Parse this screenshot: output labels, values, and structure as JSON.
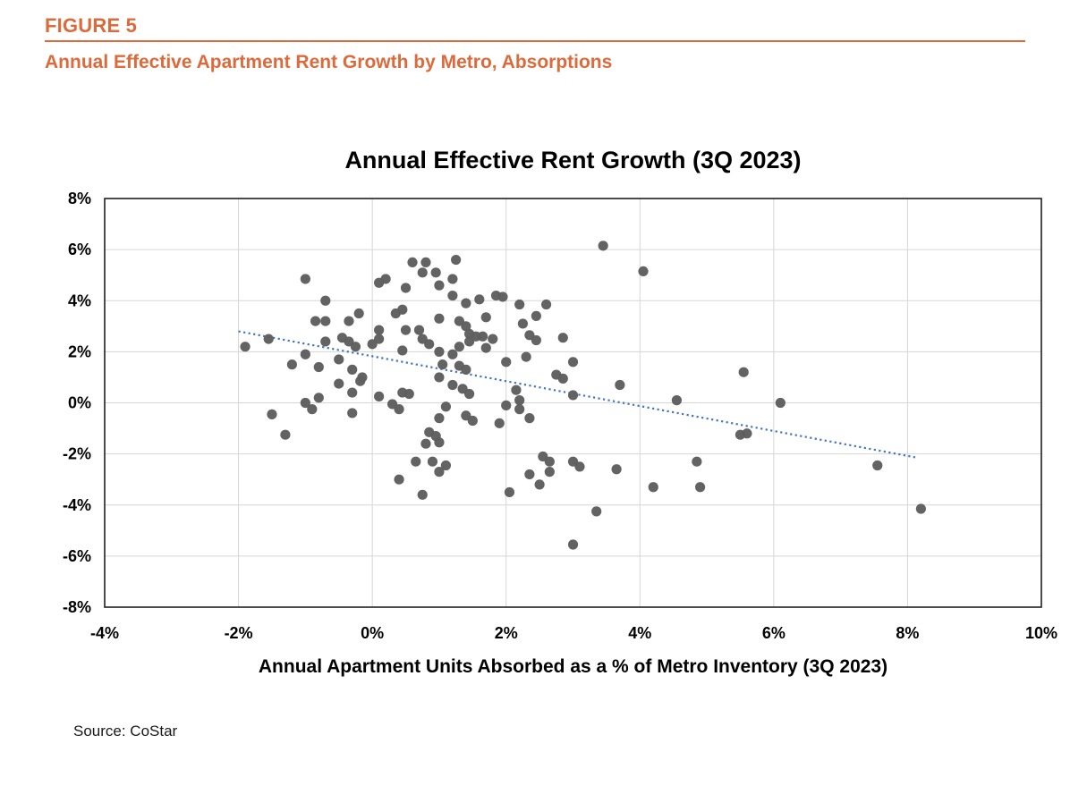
{
  "page": {
    "background": "#ffffff",
    "accent_color": "#DD6A3B"
  },
  "header": {
    "figure_label": "FIGURE 5",
    "title": "Annual Effective Apartment Rent Growth by Metro, Absorptions"
  },
  "footer": {
    "source": "Source: CoStar"
  },
  "chart_data": {
    "type": "scatter",
    "title": "Annual Effective Rent Growth (3Q 2023)",
    "xlabel": "Annual Apartment Units Absorbed as a % of Metro Inventory (3Q 2023)",
    "ylabel": "",
    "xlim": [
      -4,
      10
    ],
    "ylim": [
      -8,
      8
    ],
    "grid": true,
    "legend": "none",
    "point_color": "#5E5E5E",
    "trend_color": "#4472C4",
    "axis_color": "#1f1f1f",
    "grid_color": "#D6D6D6",
    "text_color": "#000000",
    "x_ticks": [
      {
        "value": -4,
        "label": "-4%"
      },
      {
        "value": -2,
        "label": "-2%"
      },
      {
        "value": 0,
        "label": "0%"
      },
      {
        "value": 2,
        "label": "2%"
      },
      {
        "value": 4,
        "label": "4%"
      },
      {
        "value": 6,
        "label": "6%"
      },
      {
        "value": 8,
        "label": "8%"
      },
      {
        "value": 10,
        "label": "10%"
      }
    ],
    "y_ticks": [
      {
        "value": 8,
        "label": "8%"
      },
      {
        "value": 6,
        "label": "6%"
      },
      {
        "value": 4,
        "label": "4%"
      },
      {
        "value": 2,
        "label": "2%"
      },
      {
        "value": 0,
        "label": "0%"
      },
      {
        "value": -2,
        "label": "-2%"
      },
      {
        "value": -4,
        "label": "-4%"
      },
      {
        "value": -6,
        "label": "-6%"
      },
      {
        "value": -8,
        "label": "-8%"
      }
    ],
    "trendline": {
      "style": "dotted",
      "x1": -2.0,
      "y1": 2.8,
      "x2": 8.15,
      "y2": -2.15
    },
    "points": [
      [
        -1.0,
        4.85
      ],
      [
        -0.7,
        4.0
      ],
      [
        -0.85,
        3.2
      ],
      [
        -0.7,
        3.2
      ],
      [
        -0.35,
        3.2
      ],
      [
        -0.2,
        3.5
      ],
      [
        0.6,
        5.5
      ],
      [
        0.8,
        5.5
      ],
      [
        1.25,
        5.6
      ],
      [
        0.75,
        5.1
      ],
      [
        0.95,
        5.1
      ],
      [
        0.1,
        4.7
      ],
      [
        0.2,
        4.85
      ],
      [
        0.5,
        4.5
      ],
      [
        1.0,
        4.6
      ],
      [
        1.2,
        4.85
      ],
      [
        1.2,
        4.2
      ],
      [
        1.4,
        3.9
      ],
      [
        1.6,
        4.05
      ],
      [
        1.85,
        4.2
      ],
      [
        1.95,
        4.15
      ],
      [
        2.2,
        3.85
      ],
      [
        2.6,
        3.85
      ],
      [
        3.45,
        6.15
      ],
      [
        4.05,
        5.15
      ],
      [
        0.35,
        3.5
      ],
      [
        0.45,
        3.65
      ],
      [
        1.0,
        3.3
      ],
      [
        1.3,
        3.2
      ],
      [
        1.4,
        3.0
      ],
      [
        1.7,
        3.35
      ],
      [
        2.25,
        3.1
      ],
      [
        2.45,
        3.4
      ],
      [
        0.1,
        2.85
      ],
      [
        0.1,
        2.5
      ],
      [
        0.5,
        2.85
      ],
      [
        0.7,
        2.85
      ],
      [
        0.75,
        2.5
      ],
      [
        0.85,
        2.3
      ],
      [
        1.45,
        2.7
      ],
      [
        1.55,
        2.6
      ],
      [
        1.65,
        2.6
      ],
      [
        1.8,
        2.5
      ],
      [
        1.7,
        2.15
      ],
      [
        2.35,
        2.65
      ],
      [
        2.45,
        2.45
      ],
      [
        2.85,
        2.55
      ],
      [
        -1.9,
        2.2
      ],
      [
        -1.55,
        2.5
      ],
      [
        -0.7,
        2.4
      ],
      [
        -0.45,
        2.55
      ],
      [
        -0.35,
        2.4
      ],
      [
        -0.25,
        2.2
      ],
      [
        0.0,
        2.3
      ],
      [
        -1.0,
        1.9
      ],
      [
        -1.2,
        1.5
      ],
      [
        -0.8,
        1.4
      ],
      [
        -0.5,
        1.7
      ],
      [
        0.45,
        2.05
      ],
      [
        1.0,
        2.0
      ],
      [
        1.2,
        1.9
      ],
      [
        1.3,
        2.2
      ],
      [
        1.45,
        2.4
      ],
      [
        2.0,
        1.6
      ],
      [
        2.3,
        1.8
      ],
      [
        -0.3,
        1.3
      ],
      [
        -0.15,
        1.0
      ],
      [
        -0.5,
        0.75
      ],
      [
        -0.3,
        0.4
      ],
      [
        -0.18,
        0.85
      ],
      [
        0.1,
        0.25
      ],
      [
        -0.8,
        0.2
      ],
      [
        -1.0,
        0.0
      ],
      [
        -0.9,
        -0.25
      ],
      [
        -1.5,
        -0.45
      ],
      [
        -1.3,
        -1.25
      ],
      [
        -0.3,
        -0.4
      ],
      [
        0.3,
        -0.05
      ],
      [
        0.4,
        -0.25
      ],
      [
        0.45,
        0.4
      ],
      [
        0.55,
        0.35
      ],
      [
        1.05,
        1.5
      ],
      [
        1.3,
        1.45
      ],
      [
        1.4,
        1.3
      ],
      [
        1.0,
        1.0
      ],
      [
        1.2,
        0.7
      ],
      [
        1.35,
        0.55
      ],
      [
        1.45,
        0.35
      ],
      [
        1.1,
        -0.15
      ],
      [
        1.0,
        -0.6
      ],
      [
        1.4,
        -0.5
      ],
      [
        1.5,
        -0.7
      ],
      [
        1.9,
        -0.8
      ],
      [
        2.0,
        -0.1
      ],
      [
        2.15,
        0.5
      ],
      [
        2.2,
        0.1
      ],
      [
        2.2,
        -0.25
      ],
      [
        2.35,
        -0.6
      ],
      [
        2.75,
        1.1
      ],
      [
        2.85,
        0.95
      ],
      [
        3.0,
        1.6
      ],
      [
        3.7,
        0.7
      ],
      [
        3.0,
        0.3
      ],
      [
        4.55,
        0.1
      ],
      [
        5.55,
        1.2
      ],
      [
        6.1,
        0.0
      ],
      [
        5.5,
        -1.25
      ],
      [
        5.6,
        -1.2
      ],
      [
        0.85,
        -1.15
      ],
      [
        0.95,
        -1.3
      ],
      [
        0.8,
        -1.6
      ],
      [
        1.0,
        -1.55
      ],
      [
        0.65,
        -2.3
      ],
      [
        0.9,
        -2.3
      ],
      [
        1.1,
        -2.45
      ],
      [
        1.0,
        -2.7
      ],
      [
        0.4,
        -3.0
      ],
      [
        0.75,
        -3.6
      ],
      [
        2.05,
        -3.5
      ],
      [
        2.35,
        -2.8
      ],
      [
        2.5,
        -3.2
      ],
      [
        2.55,
        -2.1
      ],
      [
        2.65,
        -2.3
      ],
      [
        2.65,
        -2.7
      ],
      [
        3.0,
        -2.3
      ],
      [
        3.1,
        -2.5
      ],
      [
        3.65,
        -2.6
      ],
      [
        3.35,
        -4.25
      ],
      [
        3.0,
        -5.55
      ],
      [
        4.2,
        -3.3
      ],
      [
        4.9,
        -3.3
      ],
      [
        4.85,
        -2.3
      ],
      [
        7.55,
        -2.45
      ],
      [
        8.2,
        -4.15
      ]
    ]
  }
}
